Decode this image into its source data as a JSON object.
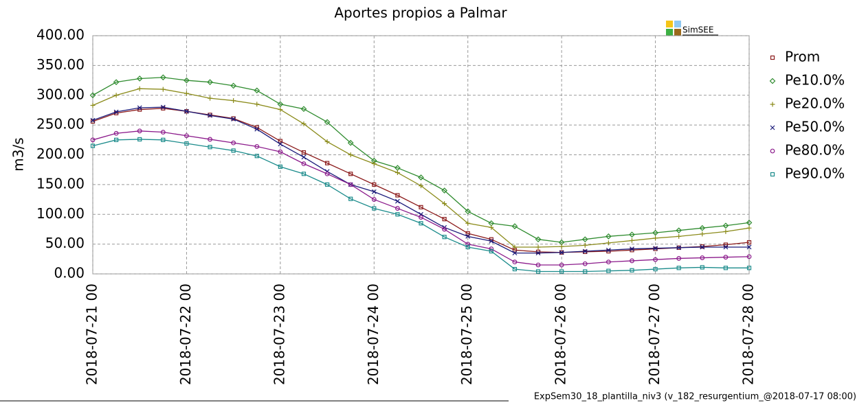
{
  "chart_data": {
    "type": "line",
    "title": "Aportes propios a Palmar",
    "ylabel": "m3/s",
    "brand": "SimSEE",
    "footer": "ExpSem30_18_plantilla_niv3 (v_182_resurgentium_@2018-07-17 08:00)",
    "x": [
      "2018-07-21 00",
      "2018-07-21 06",
      "2018-07-21 12",
      "2018-07-21 18",
      "2018-07-22 00",
      "2018-07-22 06",
      "2018-07-22 12",
      "2018-07-22 18",
      "2018-07-23 00",
      "2018-07-23 06",
      "2018-07-23 12",
      "2018-07-23 18",
      "2018-07-24 00",
      "2018-07-24 06",
      "2018-07-24 12",
      "2018-07-24 18",
      "2018-07-25 00",
      "2018-07-25 06",
      "2018-07-25 12",
      "2018-07-25 18",
      "2018-07-26 00",
      "2018-07-26 06",
      "2018-07-26 12",
      "2018-07-26 18",
      "2018-07-27 00",
      "2018-07-27 06",
      "2018-07-27 12",
      "2018-07-27 18",
      "2018-07-28 00"
    ],
    "xlim": [
      "2018-07-21 00",
      "2018-07-28 00"
    ],
    "xticks": [
      "2018-07-21 00",
      "2018-07-22 00",
      "2018-07-23 00",
      "2018-07-24 00",
      "2018-07-25 00",
      "2018-07-26 00",
      "2018-07-27 00",
      "2018-07-28 00"
    ],
    "ylim": [
      0,
      400
    ],
    "yticks": [
      {
        "value": 0,
        "label": "0.00"
      },
      {
        "value": 50,
        "label": "50.00"
      },
      {
        "value": 100,
        "label": "100.00"
      },
      {
        "value": 150,
        "label": "150.00"
      },
      {
        "value": 200,
        "label": "200.00"
      },
      {
        "value": 250,
        "label": "250.00"
      },
      {
        "value": 300,
        "label": "300.00"
      },
      {
        "value": 350,
        "label": "350.00"
      },
      {
        "value": 400,
        "label": "400.00"
      }
    ],
    "grid": true,
    "legend": "right",
    "series": [
      {
        "name": "Prom",
        "color": "#8b1a1a",
        "marker": "square",
        "values": [
          256,
          270,
          276,
          278,
          273,
          267,
          261,
          246,
          223,
          204,
          186,
          168,
          150,
          132,
          112,
          92,
          68,
          58,
          40,
          37,
          36,
          37,
          38,
          40,
          42,
          44,
          46,
          49,
          53
        ]
      },
      {
        "name": "Pe10.0%",
        "color": "#2e8b2e",
        "marker": "diamond",
        "values": [
          300,
          322,
          328,
          330,
          325,
          322,
          316,
          308,
          285,
          277,
          255,
          220,
          190,
          178,
          162,
          140,
          105,
          85,
          80,
          58,
          53,
          58,
          63,
          66,
          69,
          73,
          77,
          81,
          86
        ]
      },
      {
        "name": "Pe20.0%",
        "color": "#8b8b1a",
        "marker": "plus",
        "values": [
          283,
          300,
          311,
          310,
          303,
          295,
          291,
          285,
          276,
          252,
          222,
          200,
          185,
          170,
          148,
          118,
          85,
          78,
          45,
          45,
          46,
          48,
          52,
          56,
          60,
          63,
          67,
          71,
          77
        ]
      },
      {
        "name": "Pe50.0%",
        "color": "#1a1a7a",
        "marker": "cross",
        "values": [
          258,
          272,
          279,
          280,
          273,
          266,
          260,
          243,
          218,
          196,
          172,
          150,
          138,
          122,
          100,
          78,
          63,
          55,
          35,
          35,
          36,
          38,
          40,
          42,
          43,
          44,
          45,
          45,
          45
        ]
      },
      {
        "name": "Pe80.0%",
        "color": "#8b1a8b",
        "marker": "circle",
        "values": [
          225,
          236,
          240,
          238,
          232,
          226,
          220,
          214,
          205,
          185,
          168,
          150,
          125,
          110,
          95,
          75,
          50,
          42,
          20,
          15,
          15,
          17,
          20,
          22,
          24,
          26,
          27,
          28,
          29
        ]
      },
      {
        "name": "Pe90.0%",
        "color": "#1a8b8b",
        "marker": "square",
        "values": [
          215,
          225,
          226,
          225,
          219,
          213,
          207,
          198,
          180,
          168,
          150,
          126,
          110,
          100,
          85,
          62,
          45,
          38,
          8,
          4,
          4,
          4,
          5,
          6,
          8,
          10,
          11,
          10,
          10
        ]
      }
    ]
  }
}
